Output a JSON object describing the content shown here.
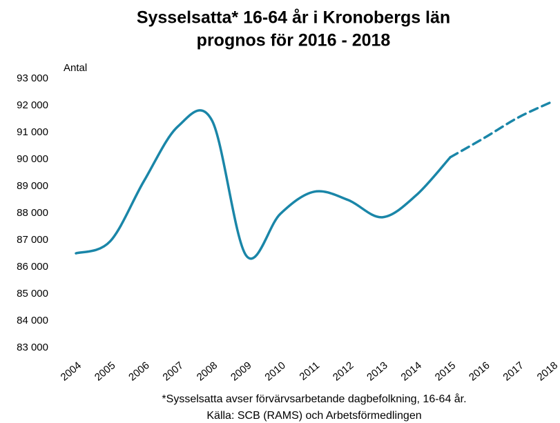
{
  "chart_data": {
    "type": "line",
    "title": [
      "Sysselsatta* 16-64 år i Kronobergs län",
      "prognos för 2016 - 2018"
    ],
    "y_label": "Antal",
    "footnotes": [
      "*Sysselsatta avser förvärvsarbetande dagbefolkning, 16-64 år.",
      "Källa: SCB (RAMS) och Arbetsförmedlingen"
    ],
    "categories": [
      "2004",
      "2005",
      "2006",
      "2007",
      "2008",
      "2009",
      "2010",
      "2011",
      "2012",
      "2013",
      "2014",
      "2015",
      "2016",
      "2017",
      "2018"
    ],
    "series": [
      {
        "color": "#1a86a8",
        "dashed": false,
        "values": [
          86510,
          86950,
          89200,
          91230,
          91440,
          86430,
          87970,
          88800,
          88490,
          87850,
          88670,
          90080,
          null,
          null,
          null
        ]
      },
      {
        "color": "#1a86a8",
        "dashed": true,
        "values": [
          null,
          null,
          null,
          null,
          null,
          null,
          null,
          null,
          null,
          null,
          null,
          90080,
          90800,
          91560,
          92150
        ]
      }
    ],
    "ylim": [
      83000,
      93000
    ],
    "yticks": [
      {
        "value": 83000,
        "label": "83 000"
      },
      {
        "value": 84000,
        "label": "84 000"
      },
      {
        "value": 85000,
        "label": "85 000"
      },
      {
        "value": 86000,
        "label": "86 000"
      },
      {
        "value": 87000,
        "label": "87 000"
      },
      {
        "value": 88000,
        "label": "88 000"
      },
      {
        "value": 89000,
        "label": "89 000"
      },
      {
        "value": 90000,
        "label": "90 000"
      },
      {
        "value": 91000,
        "label": "91 000"
      },
      {
        "value": 92000,
        "label": "92 000"
      },
      {
        "value": 93000,
        "label": "93 000"
      }
    ],
    "grid": false
  }
}
